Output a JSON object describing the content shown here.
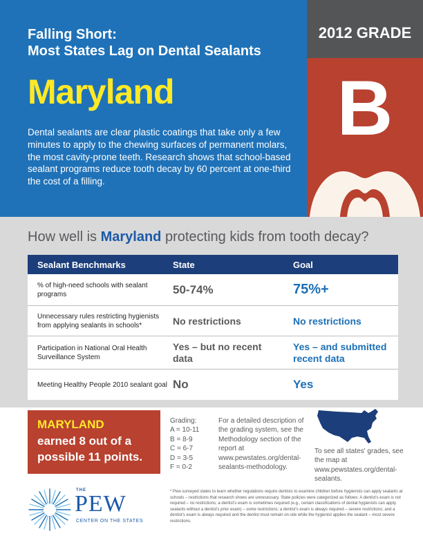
{
  "header": {
    "title_line1": "Falling Short:",
    "title_line2": "Most States Lag on Dental Sealants",
    "state": "Maryland",
    "description": "Dental sealants are clear plastic coatings that take only a few minutes to apply to the chewing surfaces of permanent molars, the most cavity-prone teeth. Research shows that school-based sealant programs reduce tooth decay by 60 percent at one-third the cost of a filling."
  },
  "grade": {
    "label": "2012 GRADE",
    "letter": "B"
  },
  "question": {
    "prefix": "How well is ",
    "state": "Maryland",
    "suffix": " protecting kids from tooth decay?"
  },
  "table": {
    "headers": [
      "Sealant Benchmarks",
      "State",
      "Goal"
    ],
    "rows": [
      {
        "benchmark": "% of high-need schools with sealant programs",
        "state": "50-74%",
        "goal": "75%+"
      },
      {
        "benchmark": "Unnecessary rules restricting hygienists from applying sealants in schools*",
        "state": "No restrictions",
        "goal": "No restrictions"
      },
      {
        "benchmark": "Participation in National Oral Health Surveillance System",
        "state": "Yes – but no recent data",
        "goal": "Yes – and submitted recent data"
      },
      {
        "benchmark": "Meeting Healthy People 2010 sealant goal",
        "state": "No",
        "goal": "Yes"
      }
    ]
  },
  "score": {
    "state": "MARYLAND",
    "text": "earned 8 out of a possible 11 points."
  },
  "grading": {
    "title": "Grading:",
    "scale": [
      "A = 10-11",
      "B = 8-9",
      "C = 6-7",
      "D = 3-5",
      "F = 0-2"
    ],
    "description": "For a detailed description of the grading system, see the Methodology section of the report at www.pewstates.org/dental-sealants-methodology."
  },
  "map": {
    "text": "To see all states' grades, see the map at www.pewstates.org/dental-sealants."
  },
  "footer": {
    "logo_the": "THE",
    "logo_name": "PEW",
    "logo_sub": "CENTER ON THE STATES",
    "footnote": "* Pew surveyed states to learn whether regulations require dentists to examine children before hygienists can apply sealants at schools – restrictions that research shows are unnecessary. State policies were categorized as follows: A dentist's exam is not required – no restrictions; a dentist's exam is sometimes required (e.g., certain classifications of dental hygienists can apply sealants without a dentist's prior exam) – some restrictions; a dentist's exam is always required – severe restrictions; and a dentist's exam is always required and the dentist must remain on-site while the hygienist applies the sealant – most severe restrictions."
  },
  "colors": {
    "hero_blue": "#1f72b8",
    "state_yellow": "#ffe926",
    "grade_red": "#b8412f",
    "table_header_navy": "#1c3e7a",
    "goal_blue": "#1c6fb6"
  }
}
